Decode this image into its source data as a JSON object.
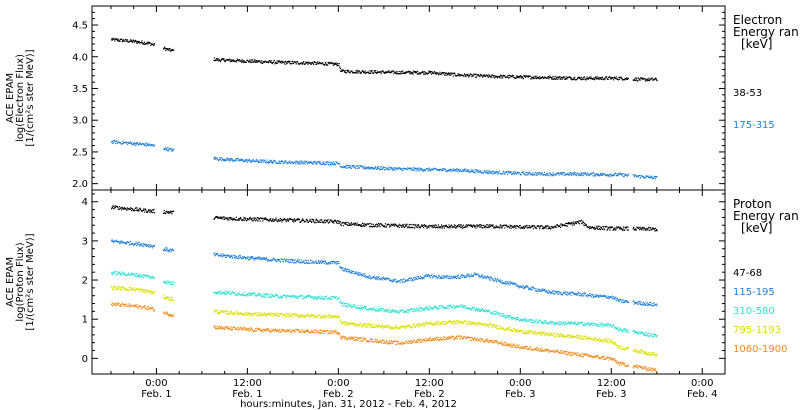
{
  "chart_data": [
    {
      "type": "scatter",
      "panel": "electron",
      "ylabel": [
        "ACE EPAM",
        "log(Electron Flux)",
        "[1/(cm²s ster MeV)]"
      ],
      "ylim": [
        1.9,
        4.8
      ],
      "yticks": [
        "2.0",
        "2.5",
        "3.0",
        "3.5",
        "4.0",
        "4.5"
      ],
      "yticks_values": [
        2.0,
        2.5,
        3.0,
        3.5,
        4.0,
        4.5
      ],
      "legend_title": [
        "Electron",
        "Energy ran",
        "[keV]"
      ],
      "series": [
        {
          "name": "38-53",
          "color": "#000000",
          "points": [
            [
              -6,
              4.28
            ],
            [
              -3,
              4.25
            ],
            [
              -1,
              4.22
            ],
            [
              1.5,
              4.12
            ],
            [
              8,
              3.96
            ],
            [
              12,
              3.94
            ],
            [
              16,
              3.92
            ],
            [
              20,
              3.91
            ],
            [
              24,
              3.89
            ],
            [
              24.3,
              3.78
            ],
            [
              28,
              3.77
            ],
            [
              32,
              3.76
            ],
            [
              36,
              3.76
            ],
            [
              40,
              3.72
            ],
            [
              44,
              3.7
            ],
            [
              48,
              3.69
            ],
            [
              52,
              3.68
            ],
            [
              56,
              3.67
            ],
            [
              60,
              3.67
            ],
            [
              61,
              3.67
            ],
            [
              64,
              3.65
            ],
            [
              66,
              3.65
            ]
          ]
        },
        {
          "name": "175-315",
          "color": "#1e7fd8",
          "points": [
            [
              -6,
              2.67
            ],
            [
              -3,
              2.64
            ],
            [
              -1,
              2.62
            ],
            [
              1.5,
              2.55
            ],
            [
              8,
              2.4
            ],
            [
              12,
              2.37
            ],
            [
              16,
              2.35
            ],
            [
              20,
              2.34
            ],
            [
              24,
              2.33
            ],
            [
              24.3,
              2.28
            ],
            [
              28,
              2.26
            ],
            [
              32,
              2.24
            ],
            [
              36,
              2.23
            ],
            [
              40,
              2.22
            ],
            [
              44,
              2.19
            ],
            [
              48,
              2.17
            ],
            [
              52,
              2.16
            ],
            [
              56,
              2.16
            ],
            [
              60,
              2.15
            ],
            [
              61,
              2.15
            ],
            [
              64,
              2.12
            ],
            [
              66,
              2.1
            ]
          ]
        }
      ]
    },
    {
      "type": "scatter",
      "panel": "proton",
      "ylabel": [
        "ACE EPAM",
        "log(Proton Flux)",
        "[1/(cm²s ster MeV)]"
      ],
      "ylim": [
        -0.4,
        4.3
      ],
      "yticks": [
        "0",
        "1",
        "2",
        "3",
        "4"
      ],
      "yticks_values": [
        0,
        1,
        2,
        3,
        4
      ],
      "legend_title": [
        "Proton",
        "Energy ran",
        "[keV]"
      ],
      "series": [
        {
          "name": "47-68",
          "color": "#000000",
          "points": [
            [
              -6,
              3.88
            ],
            [
              -3,
              3.82
            ],
            [
              -1,
              3.78
            ],
            [
              1.5,
              3.75
            ],
            [
              8,
              3.6
            ],
            [
              12,
              3.57
            ],
            [
              16,
              3.55
            ],
            [
              20,
              3.53
            ],
            [
              24,
              3.5
            ],
            [
              24.3,
              3.45
            ],
            [
              28,
              3.42
            ],
            [
              32,
              3.4
            ],
            [
              36,
              3.38
            ],
            [
              40,
              3.38
            ],
            [
              44,
              3.39
            ],
            [
              48,
              3.37
            ],
            [
              52,
              3.36
            ],
            [
              56,
              3.5
            ],
            [
              57,
              3.36
            ],
            [
              60,
              3.33
            ],
            [
              61,
              3.33
            ],
            [
              64,
              3.32
            ],
            [
              66,
              3.31
            ]
          ]
        },
        {
          "name": "115-195",
          "color": "#1e7fd8",
          "points": [
            [
              -6,
              3.0
            ],
            [
              -3,
              2.95
            ],
            [
              -1,
              2.9
            ],
            [
              1.5,
              2.78
            ],
            [
              8,
              2.65
            ],
            [
              12,
              2.58
            ],
            [
              16,
              2.52
            ],
            [
              20,
              2.48
            ],
            [
              24,
              2.45
            ],
            [
              24.3,
              2.3
            ],
            [
              28,
              2.1
            ],
            [
              32,
              1.98
            ],
            [
              34,
              2.05
            ],
            [
              36,
              2.12
            ],
            [
              38,
              2.08
            ],
            [
              40,
              2.1
            ],
            [
              42,
              2.15
            ],
            [
              44,
              2.05
            ],
            [
              48,
              1.85
            ],
            [
              52,
              1.7
            ],
            [
              56,
              1.65
            ],
            [
              58,
              1.6
            ],
            [
              60,
              1.58
            ],
            [
              61,
              1.48
            ],
            [
              64,
              1.42
            ],
            [
              66,
              1.38
            ]
          ]
        },
        {
          "name": "310-580",
          "color": "#30e0d0",
          "points": [
            [
              -6,
              2.2
            ],
            [
              -3,
              2.15
            ],
            [
              -1,
              2.1
            ],
            [
              1.5,
              1.95
            ],
            [
              8,
              1.7
            ],
            [
              12,
              1.65
            ],
            [
              16,
              1.6
            ],
            [
              20,
              1.58
            ],
            [
              24,
              1.55
            ],
            [
              24.3,
              1.4
            ],
            [
              28,
              1.28
            ],
            [
              32,
              1.2
            ],
            [
              36,
              1.3
            ],
            [
              40,
              1.35
            ],
            [
              44,
              1.2
            ],
            [
              48,
              1.0
            ],
            [
              52,
              0.92
            ],
            [
              56,
              0.9
            ],
            [
              60,
              0.85
            ],
            [
              61,
              0.75
            ],
            [
              64,
              0.65
            ],
            [
              66,
              0.58
            ]
          ]
        },
        {
          "name": "795-1193",
          "color": "#d8e000",
          "points": [
            [
              -6,
              1.82
            ],
            [
              -3,
              1.78
            ],
            [
              -1,
              1.72
            ],
            [
              1.5,
              1.55
            ],
            [
              8,
              1.2
            ],
            [
              12,
              1.15
            ],
            [
              16,
              1.12
            ],
            [
              20,
              1.1
            ],
            [
              24,
              1.08
            ],
            [
              24.3,
              0.92
            ],
            [
              28,
              0.85
            ],
            [
              32,
              0.8
            ],
            [
              36,
              0.9
            ],
            [
              40,
              0.95
            ],
            [
              44,
              0.85
            ],
            [
              48,
              0.7
            ],
            [
              52,
              0.62
            ],
            [
              56,
              0.55
            ],
            [
              60,
              0.45
            ],
            [
              61,
              0.3
            ],
            [
              64,
              0.18
            ],
            [
              66,
              0.1
            ]
          ]
        },
        {
          "name": "1060-1900",
          "color": "#f08c1a",
          "points": [
            [
              -6,
              1.4
            ],
            [
              -3,
              1.35
            ],
            [
              -1,
              1.3
            ],
            [
              1.5,
              1.15
            ],
            [
              8,
              0.8
            ],
            [
              12,
              0.75
            ],
            [
              16,
              0.72
            ],
            [
              20,
              0.7
            ],
            [
              24,
              0.68
            ],
            [
              24.3,
              0.55
            ],
            [
              28,
              0.48
            ],
            [
              32,
              0.4
            ],
            [
              36,
              0.5
            ],
            [
              40,
              0.55
            ],
            [
              44,
              0.45
            ],
            [
              48,
              0.3
            ],
            [
              52,
              0.2
            ],
            [
              56,
              0.1
            ],
            [
              60,
              0.0
            ],
            [
              61,
              -0.12
            ],
            [
              64,
              -0.22
            ],
            [
              66,
              -0.3
            ]
          ]
        }
      ]
    }
  ],
  "xaxis": {
    "ticks": [
      {
        "t": 0,
        "time": "0:00",
        "date": "Feb. 1"
      },
      {
        "t": 12,
        "time": "12:00",
        "date": "Feb. 1"
      },
      {
        "t": 24,
        "time": "0:00",
        "date": "Feb. 2"
      },
      {
        "t": 36,
        "time": "12:00",
        "date": "Feb. 2"
      },
      {
        "t": 48,
        "time": "0:00",
        "date": "Feb. 3"
      },
      {
        "t": 60,
        "time": "12:00",
        "date": "Feb. 3"
      },
      {
        "t": 72,
        "time": "0:00",
        "date": "Feb. 4"
      }
    ],
    "xlim": [
      -8.5,
      75
    ],
    "label": "hours:minutes, Jan. 31, 2012 - Feb.  4, 2012"
  },
  "gaps": [
    [
      -0.3,
      0.8
    ],
    [
      2.2,
      7.5
    ],
    [
      62.2,
      62.8
    ],
    [
      66.5,
      75
    ]
  ]
}
